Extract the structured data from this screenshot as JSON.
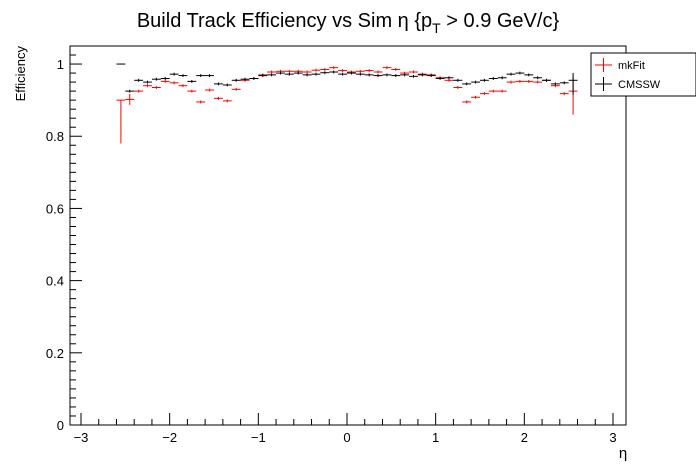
{
  "chart_data": {
    "type": "scatter",
    "title_main": "Build Track Efficiency vs Sim η {p",
    "title_sub": "T",
    "title_tail": " > 0.9 GeV/c}",
    "xlabel": "η",
    "ylabel": "Efficiency",
    "xlim": [
      -3.0,
      3.0
    ],
    "ylim": [
      0.0,
      1.05
    ],
    "x_ticks": [
      "−3",
      "−2",
      "−1",
      "0",
      "1",
      "2",
      "3"
    ],
    "y_ticks": [
      "0",
      "0.2",
      "0.4",
      "0.6",
      "0.8",
      "1"
    ],
    "bin_halfwidth": 0.05,
    "legend_position": "top-right",
    "series": [
      {
        "name": "mkFit",
        "color": "#ff0000",
        "points": [
          {
            "x": -2.55,
            "y": 0.9,
            "elo": 0.12,
            "ehi": 0.0
          },
          {
            "x": -2.45,
            "y": 0.902,
            "elo": 0.015,
            "ehi": 0.015
          },
          {
            "x": -2.35,
            "y": 0.925
          },
          {
            "x": -2.25,
            "y": 0.94
          },
          {
            "x": -2.15,
            "y": 0.935
          },
          {
            "x": -2.05,
            "y": 0.952
          },
          {
            "x": -1.95,
            "y": 0.948
          },
          {
            "x": -1.85,
            "y": 0.94
          },
          {
            "x": -1.75,
            "y": 0.925
          },
          {
            "x": -1.65,
            "y": 0.895
          },
          {
            "x": -1.55,
            "y": 0.928
          },
          {
            "x": -1.45,
            "y": 0.905
          },
          {
            "x": -1.35,
            "y": 0.898
          },
          {
            "x": -1.25,
            "y": 0.93
          },
          {
            "x": -1.15,
            "y": 0.955
          },
          {
            "x": -1.05,
            "y": 0.96
          },
          {
            "x": -0.95,
            "y": 0.97
          },
          {
            "x": -0.85,
            "y": 0.978
          },
          {
            "x": -0.75,
            "y": 0.98
          },
          {
            "x": -0.65,
            "y": 0.98
          },
          {
            "x": -0.55,
            "y": 0.98
          },
          {
            "x": -0.45,
            "y": 0.978
          },
          {
            "x": -0.35,
            "y": 0.983
          },
          {
            "x": -0.25,
            "y": 0.985
          },
          {
            "x": -0.15,
            "y": 0.99
          },
          {
            "x": -0.05,
            "y": 0.982
          },
          {
            "x": 0.05,
            "y": 0.978
          },
          {
            "x": 0.15,
            "y": 0.98
          },
          {
            "x": 0.25,
            "y": 0.982
          },
          {
            "x": 0.35,
            "y": 0.978
          },
          {
            "x": 0.45,
            "y": 0.99
          },
          {
            "x": 0.55,
            "y": 0.985
          },
          {
            "x": 0.65,
            "y": 0.975
          },
          {
            "x": 0.75,
            "y": 0.978
          },
          {
            "x": 0.85,
            "y": 0.972
          },
          {
            "x": 0.95,
            "y": 0.97
          },
          {
            "x": 1.05,
            "y": 0.962
          },
          {
            "x": 1.15,
            "y": 0.955
          },
          {
            "x": 1.25,
            "y": 0.935
          },
          {
            "x": 1.35,
            "y": 0.895
          },
          {
            "x": 1.45,
            "y": 0.908
          },
          {
            "x": 1.55,
            "y": 0.918
          },
          {
            "x": 1.65,
            "y": 0.925
          },
          {
            "x": 1.75,
            "y": 0.925
          },
          {
            "x": 1.85,
            "y": 0.95
          },
          {
            "x": 1.95,
            "y": 0.952
          },
          {
            "x": 2.05,
            "y": 0.952
          },
          {
            "x": 2.15,
            "y": 0.95
          },
          {
            "x": 2.25,
            "y": 0.955
          },
          {
            "x": 2.35,
            "y": 0.94
          },
          {
            "x": 2.45,
            "y": 0.918
          },
          {
            "x": 2.55,
            "y": 0.925,
            "elo": 0.065,
            "ehi": 0.04
          }
        ]
      },
      {
        "name": "CMSSW",
        "color": "#000000",
        "points": [
          {
            "x": -2.55,
            "y": 1.0,
            "elo": 0.0,
            "ehi": 0.0
          },
          {
            "x": -2.45,
            "y": 0.925
          },
          {
            "x": -2.35,
            "y": 0.955
          },
          {
            "x": -2.25,
            "y": 0.95
          },
          {
            "x": -2.15,
            "y": 0.958
          },
          {
            "x": -2.05,
            "y": 0.96
          },
          {
            "x": -1.95,
            "y": 0.972
          },
          {
            "x": -1.85,
            "y": 0.968
          },
          {
            "x": -1.75,
            "y": 0.952
          },
          {
            "x": -1.65,
            "y": 0.968
          },
          {
            "x": -1.55,
            "y": 0.968
          },
          {
            "x": -1.45,
            "y": 0.945
          },
          {
            "x": -1.35,
            "y": 0.942
          },
          {
            "x": -1.25,
            "y": 0.955
          },
          {
            "x": -1.15,
            "y": 0.958
          },
          {
            "x": -1.05,
            "y": 0.96
          },
          {
            "x": -0.95,
            "y": 0.968
          },
          {
            "x": -0.85,
            "y": 0.97
          },
          {
            "x": -0.75,
            "y": 0.975
          },
          {
            "x": -0.65,
            "y": 0.972
          },
          {
            "x": -0.55,
            "y": 0.975
          },
          {
            "x": -0.45,
            "y": 0.97
          },
          {
            "x": -0.35,
            "y": 0.972
          },
          {
            "x": -0.25,
            "y": 0.976
          },
          {
            "x": -0.15,
            "y": 0.978
          },
          {
            "x": -0.05,
            "y": 0.972
          },
          {
            "x": 0.05,
            "y": 0.975
          },
          {
            "x": 0.15,
            "y": 0.972
          },
          {
            "x": 0.25,
            "y": 0.97
          },
          {
            "x": 0.35,
            "y": 0.968
          },
          {
            "x": 0.45,
            "y": 0.97
          },
          {
            "x": 0.55,
            "y": 0.968
          },
          {
            "x": 0.65,
            "y": 0.97
          },
          {
            "x": 0.75,
            "y": 0.966
          },
          {
            "x": 0.85,
            "y": 0.97
          },
          {
            "x": 0.95,
            "y": 0.968
          },
          {
            "x": 1.05,
            "y": 0.96
          },
          {
            "x": 1.15,
            "y": 0.962
          },
          {
            "x": 1.25,
            "y": 0.955
          },
          {
            "x": 1.35,
            "y": 0.945
          },
          {
            "x": 1.45,
            "y": 0.95
          },
          {
            "x": 1.55,
            "y": 0.955
          },
          {
            "x": 1.65,
            "y": 0.96
          },
          {
            "x": 1.75,
            "y": 0.962
          },
          {
            "x": 1.85,
            "y": 0.972
          },
          {
            "x": 1.95,
            "y": 0.975
          },
          {
            "x": 2.05,
            "y": 0.97
          },
          {
            "x": 2.15,
            "y": 0.962
          },
          {
            "x": 2.25,
            "y": 0.955
          },
          {
            "x": 2.35,
            "y": 0.945
          },
          {
            "x": 2.45,
            "y": 0.948
          },
          {
            "x": 2.55,
            "y": 0.955,
            "elo": 0.04,
            "ehi": 0.02
          }
        ]
      }
    ]
  }
}
